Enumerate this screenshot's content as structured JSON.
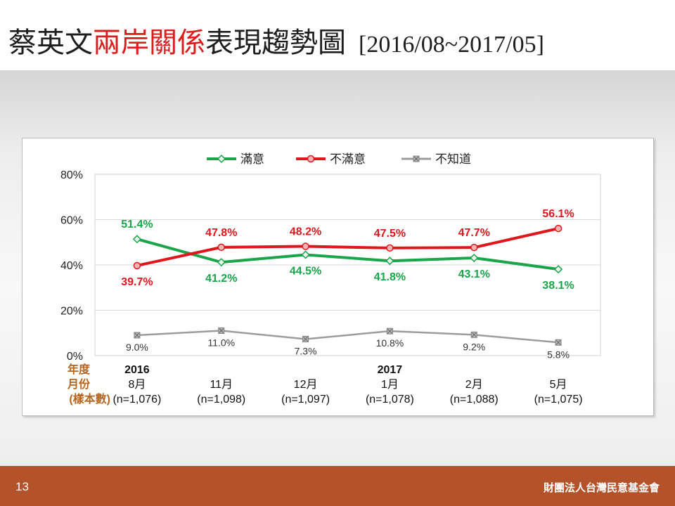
{
  "slide": {
    "title_pre": "蔡英文",
    "title_highlight": "兩岸關係",
    "title_post": "表現趨勢圖",
    "title_range": "[2016/08~2017/05]",
    "page_number": "13",
    "organization": "財團法人台灣民意基金會"
  },
  "colors": {
    "satisfied": "#1aa54a",
    "dissatisfied": "#e0161d",
    "unknown": "#9c9c9c",
    "title_highlight": "#d91e1e",
    "footer": "#b4522a",
    "row_label": "#b5651d"
  },
  "chart_data": {
    "type": "line",
    "categories": [
      "8月",
      "11月",
      "12月",
      "1月",
      "2月",
      "5月"
    ],
    "year_labels": [
      "2016",
      "",
      "",
      "2017",
      "",
      ""
    ],
    "sample_sizes": [
      "(n=1,076)",
      "(n=1,098)",
      "(n=1,097)",
      "(n=1,078)",
      "(n=1,088)",
      "(n=1,075)"
    ],
    "row_labels": [
      "年度",
      "月份",
      "(樣本數)"
    ],
    "yticks": [
      "80%",
      "60%",
      "40%",
      "20%",
      "0%"
    ],
    "ylim": [
      0,
      80
    ],
    "grid": true,
    "legend_position": "top",
    "series": [
      {
        "name": "滿意",
        "values": [
          51.4,
          41.2,
          44.5,
          41.8,
          43.1,
          38.1
        ],
        "labels": [
          "51.4%",
          "41.2%",
          "44.5%",
          "41.8%",
          "43.1%",
          "38.1%"
        ]
      },
      {
        "name": "不滿意",
        "values": [
          39.7,
          47.8,
          48.2,
          47.5,
          47.7,
          56.1
        ],
        "labels": [
          "39.7%",
          "47.8%",
          "48.2%",
          "47.5%",
          "47.7%",
          "56.1%"
        ]
      },
      {
        "name": "不知道",
        "values": [
          9.0,
          11.0,
          7.3,
          10.8,
          9.2,
          5.8
        ],
        "labels": [
          "9.0%",
          "11.0%",
          "7.3%",
          "10.8%",
          "9.2%",
          "5.8%"
        ]
      }
    ]
  }
}
